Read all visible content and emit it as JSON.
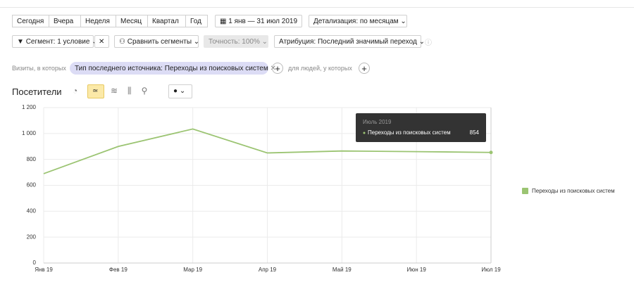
{
  "toolbar": {
    "periods": [
      "Сегодня",
      "Вчера",
      "Неделя",
      "Месяц",
      "Квартал",
      "Год"
    ],
    "date_range": "1 янв — 31 июл 2019",
    "detail": "Детализация: по месяцам",
    "segment": "Сегмент: 1 условие",
    "compare": "Сравнить сегменты",
    "accuracy": "Точность: 100%",
    "attribution": "Атрибуция: Последний значимый переход"
  },
  "filter": {
    "prefix": "Визиты, в которых",
    "condition": "Тип последнего источника: Переходы из поисковых систем",
    "people": "для людей, у которых"
  },
  "report": {
    "title": "Посетители"
  },
  "tooltip": {
    "title": "Июль 2019"
  },
  "chart_data": {
    "type": "line",
    "categories": [
      "Янв 19",
      "Фев 19",
      "Мар 19",
      "Апр 19",
      "Май 19",
      "Июн 19",
      "Июл 19"
    ],
    "series": [
      {
        "name": "Переходы из поисковых систем",
        "color": "#9bc472",
        "values": [
          690,
          900,
          1035,
          850,
          865,
          860,
          854
        ]
      }
    ],
    "ylim": [
      0,
      1200
    ],
    "yticks": [
      0,
      200,
      400,
      600,
      800,
      {
        "value": 1000,
        "label": "1 000"
      },
      {
        "value": 1200,
        "label": "1 200"
      }
    ],
    "grid": true,
    "legend": "right"
  }
}
